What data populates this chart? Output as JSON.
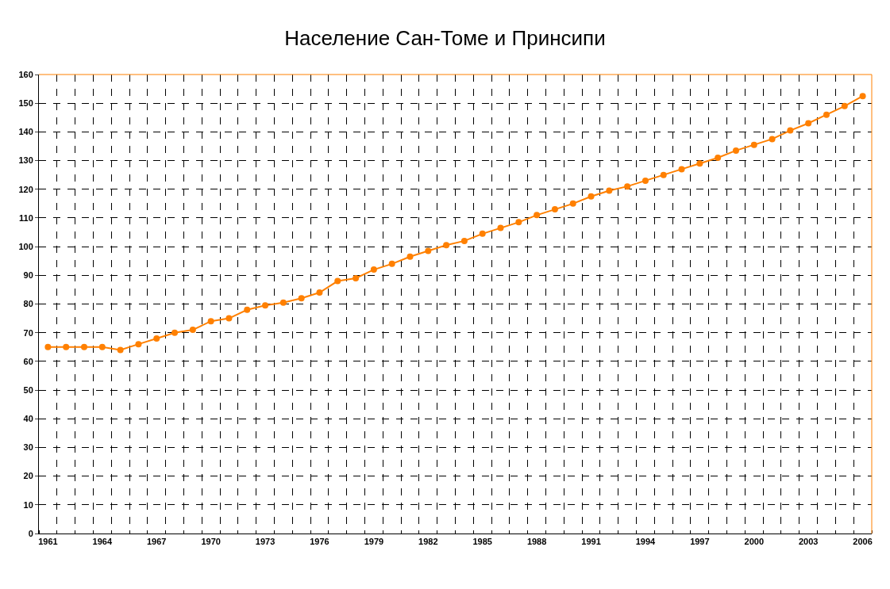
{
  "chart_data": {
    "type": "line",
    "title": "Население Сан-Томе и Принсипи",
    "categories": [
      "1961",
      null,
      null,
      "1964",
      null,
      null,
      "1967",
      null,
      null,
      "1970",
      null,
      null,
      "1973",
      null,
      null,
      "1976",
      null,
      null,
      "1979",
      null,
      null,
      "1982",
      null,
      null,
      "1985",
      null,
      null,
      "1988",
      null,
      null,
      "1991",
      null,
      null,
      "1994",
      null,
      null,
      "1997",
      null,
      null,
      "2000",
      null,
      null,
      "2003",
      null,
      null,
      "2006"
    ],
    "series": [
      {
        "color": "#ff8000",
        "values": [
          65,
          65,
          65,
          65,
          64,
          66,
          68,
          70,
          71,
          74,
          75,
          78,
          79.5,
          80.5,
          82,
          84,
          88,
          89,
          92,
          94,
          96.5,
          98.5,
          100.5,
          102,
          104.5,
          106.5,
          108.5,
          111,
          113,
          115,
          117.5,
          119.5,
          121,
          123,
          125,
          127,
          129,
          131,
          133.5,
          135.5,
          137.5,
          140.5,
          143,
          146,
          149,
          152.5
        ]
      }
    ],
    "ylim": [
      0,
      160
    ],
    "yticks": [
      0,
      10,
      20,
      30,
      40,
      50,
      60,
      70,
      80,
      90,
      100,
      110,
      120,
      130,
      140,
      150,
      160
    ],
    "grid": true,
    "legend": false,
    "marker": "circle",
    "line_style": "solid"
  }
}
